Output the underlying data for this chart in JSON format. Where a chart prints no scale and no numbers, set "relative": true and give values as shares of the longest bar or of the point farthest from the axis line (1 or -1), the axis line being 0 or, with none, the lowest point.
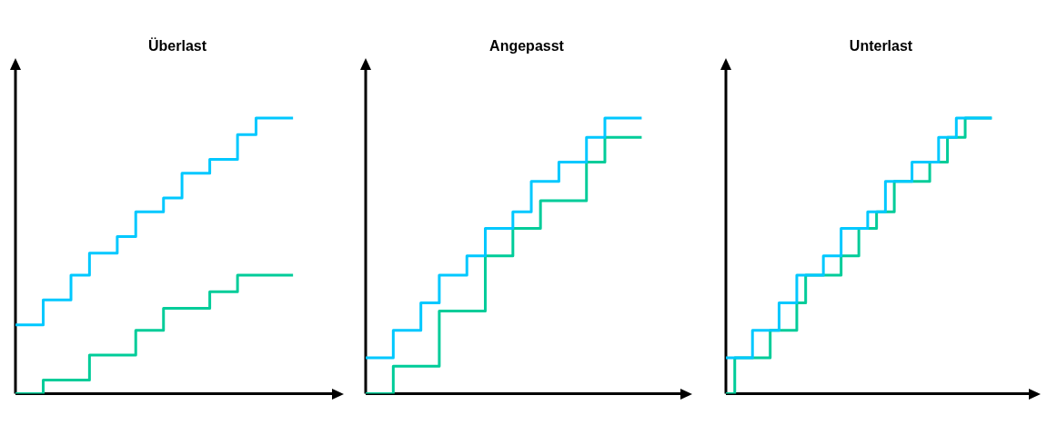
{
  "chart_data": [
    {
      "type": "step",
      "title": "Überlast",
      "relative": true,
      "legend": false,
      "marker": "none",
      "categories": [
        null,
        null,
        null,
        null,
        null,
        null,
        null,
        null,
        null,
        null,
        null,
        null,
        null,
        null,
        null,
        null,
        null,
        null,
        null,
        null,
        null,
        null,
        null,
        null,
        null,
        null,
        null,
        null,
        null,
        null,
        null,
        null,
        null,
        null,
        null,
        null
      ],
      "series": [
        {
          "color": "#00c8ff",
          "values": [
            0.25,
            0.25,
            0.25,
            0.25,
            0.34,
            0.34,
            0.34,
            0.43,
            0.43,
            0.51,
            0.51,
            0.51,
            0.57,
            0.57,
            0.66,
            0.66,
            0.66,
            0.71,
            0.71,
            0.8,
            0.8,
            0.8,
            0.85,
            0.85,
            0.85,
            0.94,
            0.94,
            1,
            1,
            1,
            1,
            null,
            null,
            null,
            null,
            null
          ]
        },
        {
          "color": "#00cc99",
          "values": [
            0,
            0,
            0,
            0,
            0.05,
            0.05,
            0.05,
            0.05,
            0.05,
            0.14,
            0.14,
            0.14,
            0.14,
            0.14,
            0.23,
            0.23,
            0.23,
            0.31,
            0.31,
            0.31,
            0.31,
            0.31,
            0.37,
            0.37,
            0.37,
            0.43,
            0.43,
            0.43,
            0.43,
            0.43,
            0.43,
            null,
            null,
            null,
            null,
            null
          ]
        }
      ]
    },
    {
      "type": "step",
      "title": "Angepasst",
      "relative": true,
      "legend": false,
      "marker": "none",
      "categories": [
        null,
        null,
        null,
        null,
        null,
        null,
        null,
        null,
        null,
        null,
        null,
        null,
        null,
        null,
        null,
        null,
        null,
        null,
        null,
        null,
        null,
        null,
        null,
        null,
        null,
        null,
        null,
        null,
        null,
        null,
        null,
        null,
        null,
        null,
        null,
        null
      ],
      "series": [
        {
          "color": "#00c8ff",
          "values": [
            0.13,
            0.13,
            0.13,
            0.13,
            0.23,
            0.23,
            0.23,
            0.33,
            0.33,
            0.43,
            0.43,
            0.43,
            0.5,
            0.5,
            0.6,
            0.6,
            0.6,
            0.66,
            0.66,
            0.77,
            0.77,
            0.77,
            0.84,
            0.84,
            0.84,
            0.93,
            0.93,
            1,
            1,
            1,
            1,
            null,
            null,
            null,
            null,
            null
          ]
        },
        {
          "color": "#00cc99",
          "values": [
            0,
            0,
            0,
            0,
            0.1,
            0.1,
            0.1,
            0.1,
            0.1,
            0.3,
            0.3,
            0.3,
            0.3,
            0.3,
            0.5,
            0.5,
            0.5,
            0.6,
            0.6,
            0.6,
            0.7,
            0.7,
            0.7,
            0.7,
            0.7,
            0.84,
            0.84,
            0.93,
            0.93,
            0.93,
            0.93,
            null,
            null,
            null,
            null,
            null
          ]
        }
      ]
    },
    {
      "type": "step",
      "title": "Unterlast",
      "relative": true,
      "legend": false,
      "marker": "none",
      "categories": [
        null,
        null,
        null,
        null,
        null,
        null,
        null,
        null,
        null,
        null,
        null,
        null,
        null,
        null,
        null,
        null,
        null,
        null,
        null,
        null,
        null,
        null,
        null,
        null,
        null,
        null,
        null,
        null,
        null,
        null,
        null,
        null,
        null,
        null,
        null,
        null
      ],
      "series": [
        {
          "color": "#00c8ff",
          "values": [
            0.13,
            0.13,
            0.13,
            0.13,
            0.23,
            0.23,
            0.23,
            0.33,
            0.33,
            0.43,
            0.43,
            0.43,
            0.5,
            0.5,
            0.6,
            0.6,
            0.6,
            0.66,
            0.66,
            0.77,
            0.77,
            0.77,
            0.84,
            0.84,
            0.84,
            0.93,
            0.93,
            1,
            1,
            1,
            1,
            null,
            null,
            null,
            null,
            null
          ]
        },
        {
          "color": "#00cc99",
          "values": [
            0,
            0,
            0.13,
            0.13,
            0.13,
            0.13,
            0.23,
            0.23,
            0.23,
            0.33,
            0.43,
            0.43,
            0.43,
            0.43,
            0.5,
            0.5,
            0.6,
            0.6,
            0.66,
            0.66,
            0.77,
            0.77,
            0.77,
            0.77,
            0.84,
            0.84,
            0.93,
            0.93,
            1,
            1,
            1,
            null,
            null,
            null,
            null,
            null
          ]
        }
      ]
    }
  ]
}
